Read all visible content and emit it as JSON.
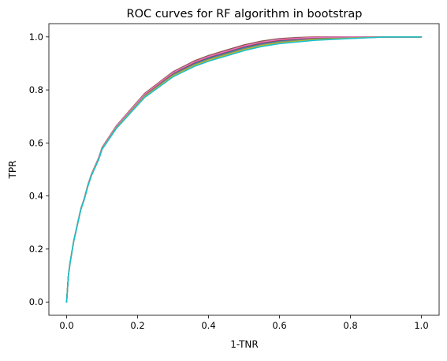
{
  "chart_data": {
    "type": "line",
    "title": "ROC curves for RF algorithm in bootstrap",
    "xlabel": "1-TNR",
    "ylabel": "TPR",
    "xlim": [
      -0.05,
      1.05
    ],
    "ylim": [
      -0.05,
      1.05
    ],
    "x_ticks": [
      "0.0",
      "0.2",
      "0.4",
      "0.6",
      "0.8",
      "1.0"
    ],
    "y_ticks": [
      "0.0",
      "0.2",
      "0.4",
      "0.6",
      "0.8",
      "1.0"
    ],
    "grid": false,
    "legend": "none",
    "note": "Many overlapping bootstrap ROC curves with nearly identical shape",
    "base_curve": {
      "x": [
        0.0,
        0.005,
        0.01,
        0.02,
        0.03,
        0.04,
        0.05,
        0.06,
        0.07,
        0.08,
        0.09,
        0.1,
        0.12,
        0.14,
        0.16,
        0.18,
        0.2,
        0.22,
        0.24,
        0.26,
        0.28,
        0.3,
        0.33,
        0.36,
        0.4,
        0.45,
        0.5,
        0.55,
        0.6,
        0.65,
        0.7,
        0.8,
        0.9,
        1.0
      ],
      "y": [
        0.0,
        0.1,
        0.15,
        0.23,
        0.29,
        0.35,
        0.39,
        0.44,
        0.48,
        0.51,
        0.54,
        0.58,
        0.62,
        0.66,
        0.69,
        0.72,
        0.75,
        0.78,
        0.8,
        0.82,
        0.84,
        0.86,
        0.88,
        0.9,
        0.92,
        0.94,
        0.96,
        0.975,
        0.985,
        0.99,
        0.995,
        0.998,
        1.0,
        1.0
      ]
    },
    "series": [
      {
        "color": "#1f77b4",
        "dy": 0.0
      },
      {
        "color": "#ff7f0e",
        "dy": 0.008
      },
      {
        "color": "#2ca02c",
        "dy": -0.006
      },
      {
        "color": "#d62728",
        "dy": 0.004
      },
      {
        "color": "#9467bd",
        "dy": -0.01
      },
      {
        "color": "#8c564b",
        "dy": 0.01
      },
      {
        "color": "#e377c2",
        "dy": 0.006
      },
      {
        "color": "#7f7f7f",
        "dy": -0.004
      },
      {
        "color": "#bcbd22",
        "dy": -0.008
      },
      {
        "color": "#17becf",
        "dy": -0.012
      }
    ]
  }
}
